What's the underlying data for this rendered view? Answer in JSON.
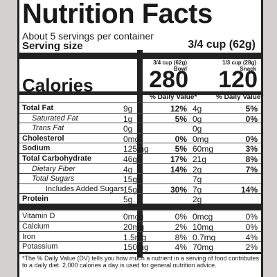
{
  "title": "Nutrition Facts",
  "servings": "About 5 servings per container",
  "serving_size_label": "Serving size",
  "serving_size_value": "3/4 cup (62g)",
  "col1": {
    "head1": "3/4 cup (62g)",
    "head2": "Bowl",
    "calories": "280"
  },
  "col2": {
    "head1": "1/3 cup (28g)",
    "head2": "Snack",
    "calories": "120"
  },
  "calories_label": "Calories",
  "dv_header": "% Daily Value*",
  "nutrients": [
    {
      "name": "Total Fat",
      "c1": "9g",
      "d1": "12%",
      "c2": "4g",
      "d2": "5%",
      "style": "bold"
    },
    {
      "name": "Saturated Fat",
      "c1": "1g",
      "d1": "5%",
      "c2": "0g",
      "d2": "0%",
      "style": "ind1"
    },
    {
      "name": "Trans Fat",
      "c1": "0g",
      "d1": "",
      "c2": "0g",
      "d2": "",
      "style": "ind1"
    },
    {
      "name": "Cholesterol",
      "c1": "0mg",
      "d1": "0%",
      "c2": "0mg",
      "d2": "0%",
      "style": "bold"
    },
    {
      "name": "Sodium",
      "c1": "125mg",
      "d1": "5%",
      "c2": "60mg",
      "d2": "3%",
      "style": "bold"
    },
    {
      "name": "Total Carbohydrate",
      "c1": "46g",
      "d1": "17%",
      "c2": "21g",
      "d2": "8%",
      "style": "bold"
    },
    {
      "name": "Dietary Fiber",
      "c1": "4g",
      "d1": "14%",
      "c2": "2g",
      "d2": "7%",
      "style": "ind1"
    },
    {
      "name": "Total Sugars",
      "c1": "15g",
      "d1": "",
      "c2": "7g",
      "d2": "",
      "style": "ind1"
    },
    {
      "name": "Includes Added Sugars",
      "c1": "15g",
      "d1": "30%",
      "c2": "7g",
      "d2": "14%",
      "style": "ind2"
    },
    {
      "name": "Protein",
      "c1": "5g",
      "d1": "",
      "c2": "2g",
      "d2": "",
      "style": "bold"
    }
  ],
  "vitamins": [
    {
      "name": "Vitamin D",
      "c1": "0mcg",
      "d1": "0%",
      "c2": "0mcg",
      "d2": "0%"
    },
    {
      "name": "Calcium",
      "c1": "20mg",
      "d1": "2%",
      "c2": "10mg",
      "d2": "0%"
    },
    {
      "name": "Iron",
      "c1": "1.5mg",
      "d1": "8%",
      "c2": "0.7mg",
      "d2": "4%"
    },
    {
      "name": "Potassium",
      "c1": "150mg",
      "d1": "4%",
      "c2": "70mg",
      "d2": "2%"
    }
  ],
  "footnote": "*The % Daily Value (DV) tells you how much a nutrient in a serving of food contributes to a daily diet. 2,000 calories a day is used for general nutrition advice."
}
